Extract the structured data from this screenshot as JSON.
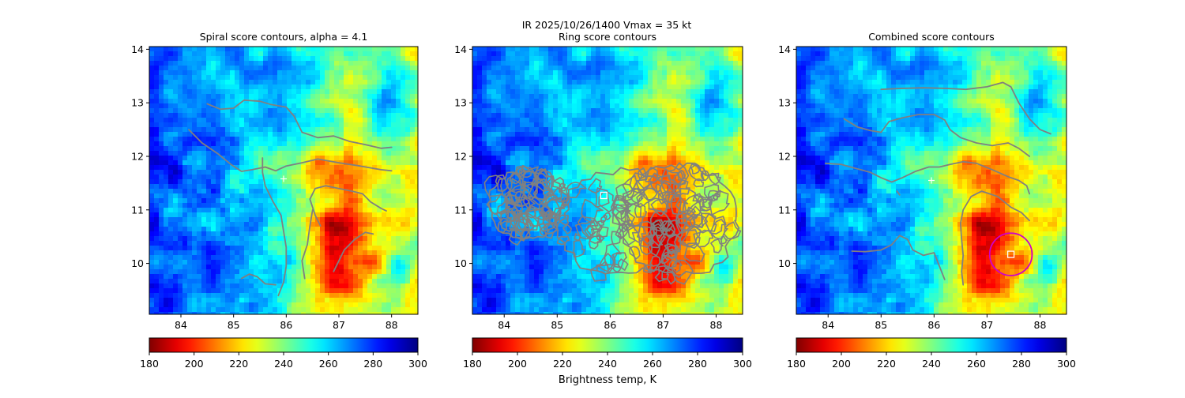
{
  "figure": {
    "suptitle_line1": "IR  2025/10/26/1400    Vmax = 35 kt",
    "colorbar_label": "Brightness temp, K"
  },
  "chart_data": [
    {
      "type": "heatmap",
      "id": "spiral",
      "title": "Spiral score contours, alpha =  4.1",
      "xlim": [
        83.4,
        88.5
      ],
      "ylim": [
        9.05,
        14.05
      ],
      "xticks": [
        "84",
        "85",
        "86",
        "87",
        "88"
      ],
      "yticks": [
        "10",
        "11",
        "12",
        "13",
        "14"
      ],
      "colorbar": {
        "min": 180,
        "max": 300,
        "ticks": [
          "180",
          "200",
          "220",
          "240",
          "260",
          "280",
          "300"
        ]
      },
      "markers": [
        {
          "kind": "plus",
          "x": 85.95,
          "y": 11.58,
          "color": "#ffffff"
        }
      ],
      "contour_color": "#808080",
      "contours": [
        [
          [
            84.5,
            12.98
          ],
          [
            84.75,
            12.88
          ],
          [
            85.0,
            12.9
          ],
          [
            85.2,
            13.05
          ],
          [
            85.5,
            13.03
          ],
          [
            85.7,
            12.97
          ],
          [
            86.0,
            12.92
          ],
          [
            86.15,
            12.75
          ],
          [
            86.3,
            12.45
          ],
          [
            86.6,
            12.35
          ],
          [
            86.9,
            12.38
          ],
          [
            87.2,
            12.28
          ],
          [
            87.5,
            12.22
          ],
          [
            87.8,
            12.15
          ],
          [
            88.0,
            12.17
          ]
        ],
        [
          [
            84.15,
            12.5
          ],
          [
            84.4,
            12.25
          ],
          [
            84.7,
            12.05
          ],
          [
            84.95,
            11.85
          ],
          [
            85.15,
            11.72
          ],
          [
            85.35,
            11.75
          ],
          [
            85.6,
            11.8
          ],
          [
            85.8,
            11.73
          ],
          [
            86.0,
            11.82
          ],
          [
            86.3,
            11.88
          ],
          [
            86.6,
            11.95
          ],
          [
            87.0,
            11.88
          ],
          [
            87.4,
            11.82
          ],
          [
            87.8,
            11.75
          ],
          [
            88.0,
            11.73
          ]
        ],
        [
          [
            85.55,
            11.97
          ],
          [
            85.55,
            11.7
          ],
          [
            85.6,
            11.45
          ],
          [
            85.75,
            11.15
          ],
          [
            85.9,
            10.9
          ],
          [
            85.95,
            10.6
          ],
          [
            86.0,
            10.3
          ],
          [
            86.0,
            9.95
          ],
          [
            85.95,
            9.65
          ],
          [
            85.85,
            9.4
          ]
        ],
        [
          [
            86.65,
            10.7
          ],
          [
            86.55,
            10.9
          ],
          [
            86.45,
            11.2
          ],
          [
            86.55,
            11.4
          ],
          [
            86.75,
            11.45
          ],
          [
            87.0,
            11.4
          ],
          [
            87.25,
            11.35
          ],
          [
            87.45,
            11.3
          ],
          [
            87.6,
            11.15
          ],
          [
            87.8,
            11.03
          ],
          [
            87.9,
            10.98
          ]
        ],
        [
          [
            86.35,
            9.72
          ],
          [
            86.3,
            10.05
          ],
          [
            86.4,
            10.35
          ],
          [
            86.45,
            10.7
          ],
          [
            86.5,
            11.0
          ]
        ],
        [
          [
            86.9,
            9.85
          ],
          [
            87.0,
            10.05
          ],
          [
            87.1,
            10.25
          ],
          [
            87.3,
            10.45
          ],
          [
            87.5,
            10.58
          ],
          [
            87.65,
            10.55
          ]
        ],
        [
          [
            85.15,
            9.72
          ],
          [
            85.3,
            9.8
          ],
          [
            85.45,
            9.75
          ],
          [
            85.6,
            9.62
          ],
          [
            85.8,
            9.6
          ]
        ]
      ]
    },
    {
      "type": "heatmap",
      "id": "ring",
      "title": "Ring score contours",
      "xlim": [
        83.4,
        88.5
      ],
      "ylim": [
        9.05,
        14.05
      ],
      "xticks": [
        "84",
        "85",
        "86",
        "87",
        "88"
      ],
      "yticks": [
        "10",
        "11",
        "12",
        "13",
        "14"
      ],
      "colorbar": {
        "min": 180,
        "max": 300,
        "ticks": [
          "180",
          "200",
          "220",
          "240",
          "260",
          "280",
          "300"
        ]
      },
      "markers": [
        {
          "kind": "square",
          "x": 85.88,
          "y": 11.27,
          "color": "#ffffff"
        }
      ],
      "contour_color": "#808080",
      "ring_blobs": [
        {
          "cx": 84.45,
          "cy": 11.1,
          "rx": 0.75,
          "ry": 0.65
        },
        {
          "cx": 86.2,
          "cy": 10.75,
          "rx": 1.2,
          "ry": 1.0
        },
        {
          "cx": 87.3,
          "cy": 10.8,
          "rx": 1.1,
          "ry": 1.05
        }
      ]
    },
    {
      "type": "heatmap",
      "id": "combined",
      "title": "Combined score contours",
      "xlim": [
        83.4,
        88.5
      ],
      "ylim": [
        9.05,
        14.05
      ],
      "xticks": [
        "84",
        "85",
        "86",
        "87",
        "88"
      ],
      "yticks": [
        "10",
        "11",
        "12",
        "13",
        "14"
      ],
      "colorbar": {
        "min": 180,
        "max": 300,
        "ticks": [
          "180",
          "200",
          "220",
          "240",
          "260",
          "280",
          "300"
        ]
      },
      "markers": [
        {
          "kind": "plus",
          "x": 85.95,
          "y": 11.55,
          "color": "#ffffff"
        },
        {
          "kind": "square",
          "x": 87.45,
          "y": 10.17,
          "color": "#ffffff"
        },
        {
          "kind": "circle",
          "x": 87.45,
          "y": 10.17,
          "radius": 0.4,
          "color": "#cc00cc"
        }
      ],
      "contour_color": "#808080",
      "contours": [
        [
          [
            85.0,
            13.25
          ],
          [
            85.4,
            13.27
          ],
          [
            85.8,
            13.28
          ],
          [
            86.2,
            13.27
          ],
          [
            86.6,
            13.25
          ],
          [
            87.0,
            13.3
          ],
          [
            87.3,
            13.38
          ],
          [
            87.45,
            13.3
          ],
          [
            87.6,
            13.0
          ],
          [
            87.8,
            12.7
          ],
          [
            88.0,
            12.5
          ],
          [
            88.2,
            12.42
          ]
        ],
        [
          [
            84.3,
            12.7
          ],
          [
            84.55,
            12.55
          ],
          [
            84.8,
            12.48
          ],
          [
            85.0,
            12.45
          ],
          [
            85.15,
            12.65
          ],
          [
            85.4,
            12.72
          ],
          [
            85.7,
            12.78
          ],
          [
            86.0,
            12.78
          ],
          [
            86.2,
            12.68
          ],
          [
            86.3,
            12.5
          ],
          [
            86.5,
            12.35
          ],
          [
            86.8,
            12.25
          ],
          [
            87.1,
            12.2
          ],
          [
            87.4,
            12.25
          ],
          [
            87.6,
            12.15
          ],
          [
            87.8,
            12.0
          ]
        ],
        [
          [
            83.95,
            11.87
          ],
          [
            84.25,
            11.85
          ],
          [
            84.5,
            11.78
          ],
          [
            84.8,
            11.7
          ],
          [
            85.0,
            11.6
          ],
          [
            85.2,
            11.52
          ],
          [
            85.4,
            11.6
          ],
          [
            85.65,
            11.72
          ],
          [
            85.9,
            11.8
          ],
          [
            86.1,
            11.8
          ],
          [
            86.3,
            11.85
          ],
          [
            86.55,
            11.9
          ],
          [
            86.8,
            11.87
          ],
          [
            87.1,
            11.75
          ],
          [
            87.4,
            11.62
          ],
          [
            87.6,
            11.55
          ],
          [
            87.75,
            11.45
          ],
          [
            87.8,
            11.3
          ]
        ],
        [
          [
            86.55,
            9.6
          ],
          [
            86.52,
            9.85
          ],
          [
            86.55,
            10.15
          ],
          [
            86.52,
            10.45
          ],
          [
            86.5,
            10.75
          ],
          [
            86.55,
            11.0
          ],
          [
            86.7,
            11.25
          ],
          [
            86.9,
            11.35
          ],
          [
            87.2,
            11.25
          ],
          [
            87.45,
            11.05
          ],
          [
            87.65,
            10.95
          ],
          [
            87.8,
            10.8
          ]
        ],
        [
          [
            84.45,
            10.23
          ],
          [
            84.7,
            10.22
          ],
          [
            85.0,
            10.25
          ],
          [
            85.2,
            10.35
          ],
          [
            85.35,
            10.52
          ],
          [
            85.5,
            10.45
          ],
          [
            85.6,
            10.25
          ],
          [
            85.8,
            10.15
          ],
          [
            86.0,
            10.2
          ],
          [
            86.1,
            9.95
          ],
          [
            86.2,
            9.7
          ]
        ],
        [
          [
            85.3,
            11.35
          ],
          [
            85.35,
            11.28
          ]
        ]
      ]
    }
  ]
}
